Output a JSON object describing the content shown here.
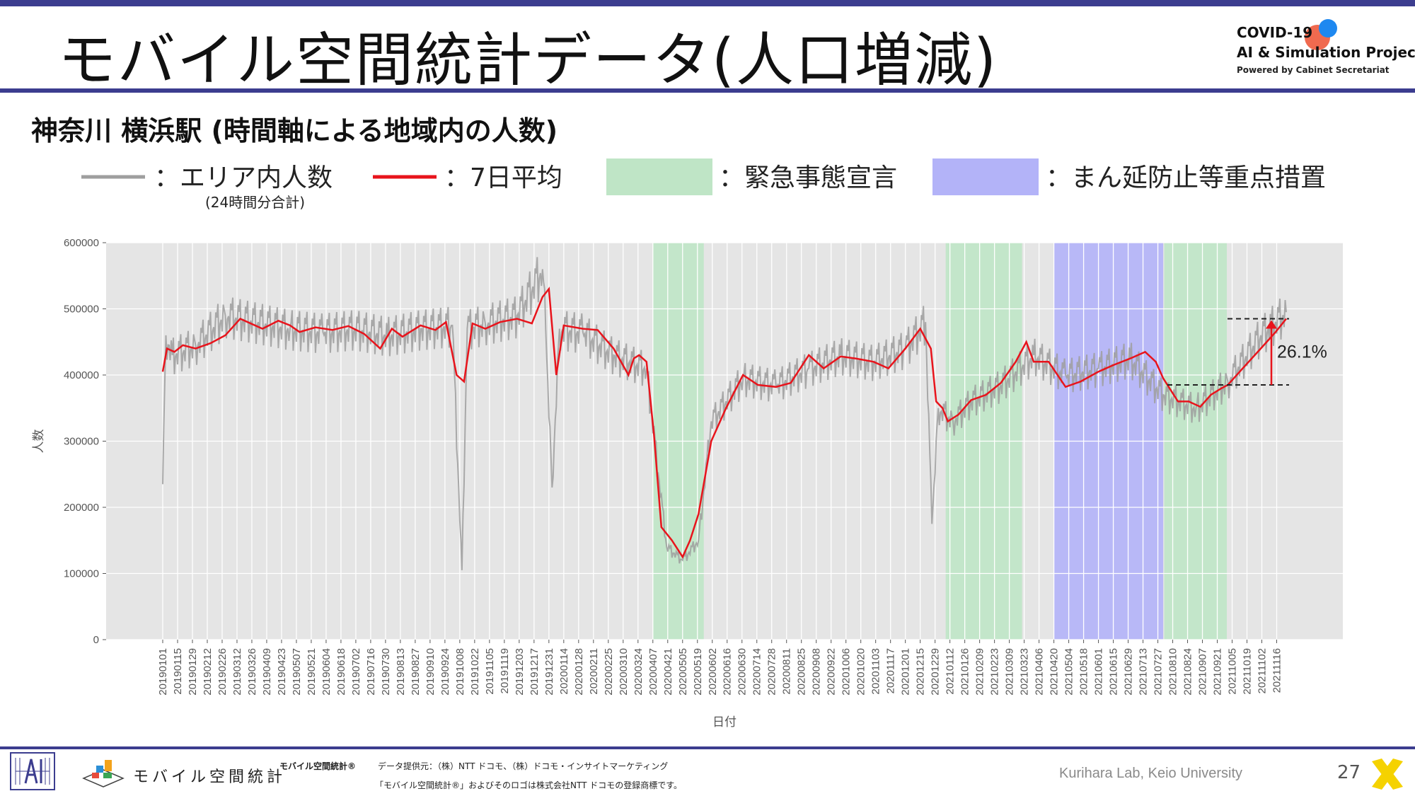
{
  "header": {
    "title": "モバイル空間統計データ(人口増減)",
    "logo_line1": "COVID-19",
    "logo_line2": "AI & Simulation Project",
    "logo_line3": "Powered by Cabinet Secretariat"
  },
  "subtitle": "神奈川 横浜駅 (時間軸による地域内の人数)",
  "legend": {
    "area_population": "：エリア内人数",
    "area_population_note": "(24時間分合計)",
    "moving_average": "：7日平均",
    "emergency": "：緊急事態宣言",
    "priority_measures": "：まん延防止等重点措置"
  },
  "colors": {
    "accent": "#3c3d8f",
    "daily_line": "#9e9e9e",
    "avg_line": "#e8141c",
    "emergency_band": "#bfe5c6",
    "priority_band": "#b3b3f8",
    "plot_bg": "#e5e5e5"
  },
  "chart_data": {
    "type": "line",
    "title": "",
    "xlabel": "日付",
    "ylabel": "人数",
    "ylim": [
      0,
      600000
    ],
    "yticks": [
      0,
      100000,
      200000,
      300000,
      400000,
      500000,
      600000
    ],
    "xtick_labels": [
      "20190101",
      "20190115",
      "20190129",
      "20190212",
      "20190226",
      "20190312",
      "20190326",
      "20190409",
      "20190423",
      "20190507",
      "20190521",
      "20190604",
      "20190618",
      "20190702",
      "20190716",
      "20190730",
      "20190813",
      "20190827",
      "20190910",
      "20190924",
      "20191008",
      "20191022",
      "20191105",
      "20191119",
      "20191203",
      "20191217",
      "20191231",
      "20200114",
      "20200128",
      "20200211",
      "20200225",
      "20200310",
      "20200324",
      "20200407",
      "20200421",
      "20200505",
      "20200519",
      "20200602",
      "20200616",
      "20200630",
      "20200714",
      "20200728",
      "20200811",
      "20200825",
      "20200908",
      "20200922",
      "20201006",
      "20201020",
      "20201103",
      "20201117",
      "20201201",
      "20201215",
      "20201229",
      "20210112",
      "20210126",
      "20210209",
      "20210223",
      "20210309",
      "20210323",
      "20210406",
      "20210420",
      "20210504",
      "20210518",
      "20210601",
      "20210615",
      "20210629",
      "20210713",
      "20210727",
      "20210810",
      "20210824",
      "20210907",
      "20210921",
      "20211005",
      "20211019",
      "20211102",
      "20211116"
    ],
    "x_range": [
      "20190101",
      "20211125"
    ],
    "grid": true,
    "shaded_periods": [
      {
        "kind": "emergency",
        "start": "20200407",
        "end": "20200525"
      },
      {
        "kind": "emergency",
        "start": "20210108",
        "end": "20210321"
      },
      {
        "kind": "priority",
        "start": "20210420",
        "end": "20210801"
      },
      {
        "kind": "emergency",
        "start": "20210802",
        "end": "20210930"
      }
    ],
    "series": [
      {
        "name": "7日平均",
        "x": [
          "20190101",
          "20190105",
          "20190112",
          "20190120",
          "20190201",
          "20190215",
          "20190301",
          "20190315",
          "20190322",
          "20190405",
          "20190420",
          "20190501",
          "20190510",
          "20190525",
          "20190610",
          "20190625",
          "20190710",
          "20190725",
          "20190805",
          "20190815",
          "20190901",
          "20190915",
          "20190925",
          "20191005",
          "20191012",
          "20191020",
          "20191101",
          "20191115",
          "20191201",
          "20191215",
          "20191225",
          "20191231",
          "20200107",
          "20200114",
          "20200201",
          "20200215",
          "20200301",
          "20200315",
          "20200320",
          "20200325",
          "20200401",
          "20200408",
          "20200415",
          "20200425",
          "20200505",
          "20200512",
          "20200520",
          "20200601",
          "20200615",
          "20200701",
          "20200715",
          "20200801",
          "20200815",
          "20200901",
          "20200915",
          "20201001",
          "20201015",
          "20201101",
          "20201115",
          "20201201",
          "20201215",
          "20201225",
          "20201230",
          "20210105",
          "20210110",
          "20210120",
          "20210201",
          "20210215",
          "20210301",
          "20210315",
          "20210325",
          "20210401",
          "20210415",
          "20210501",
          "20210515",
          "20210601",
          "20210615",
          "20210701",
          "20210715",
          "20210725",
          "20210801",
          "20210815",
          "20210825",
          "20210905",
          "20210915",
          "20210925",
          "20211001",
          "20211015",
          "20211101",
          "20211115",
          "20211125"
        ],
        "values": [
          405000,
          440000,
          435000,
          445000,
          440000,
          448000,
          460000,
          485000,
          480000,
          470000,
          482000,
          475000,
          465000,
          472000,
          468000,
          474000,
          462000,
          440000,
          470000,
          458000,
          475000,
          468000,
          480000,
          400000,
          390000,
          478000,
          470000,
          480000,
          485000,
          478000,
          518000,
          530000,
          400000,
          475000,
          470000,
          468000,
          440000,
          400000,
          425000,
          430000,
          420000,
          310000,
          170000,
          150000,
          125000,
          150000,
          190000,
          300000,
          350000,
          400000,
          385000,
          382000,
          388000,
          430000,
          410000,
          428000,
          425000,
          420000,
          410000,
          440000,
          470000,
          440000,
          360000,
          350000,
          330000,
          340000,
          362000,
          370000,
          388000,
          420000,
          450000,
          420000,
          420000,
          382000,
          390000,
          405000,
          415000,
          425000,
          435000,
          420000,
          395000,
          360000,
          360000,
          352000,
          370000,
          380000,
          385000,
          410000,
          440000,
          465000,
          485000
        ]
      },
      {
        "name": "エリア内人数",
        "x": [
          "20190101",
          "20190104",
          "20190110",
          "20190201",
          "20190301",
          "20190401",
          "20190501",
          "20190601",
          "20190701",
          "20190801",
          "20190901",
          "20191001",
          "20191010",
          "20191015",
          "20191101",
          "20191201",
          "20191225",
          "20191228",
          "20200103",
          "20200110",
          "20200201",
          "20200301",
          "20200401",
          "20200420",
          "20200505",
          "20200520",
          "20200601",
          "20200701",
          "20200801",
          "20200901",
          "20201001",
          "20201101",
          "20201201",
          "20201220",
          "20201226",
          "20210101",
          "20210115",
          "20210201",
          "20210301",
          "20210401",
          "20210501",
          "20210601",
          "20210701",
          "20210801",
          "20210901",
          "20211001",
          "20211101",
          "20211125"
        ],
        "values": [
          235000,
          460000,
          430000,
          445000,
          490000,
          480000,
          470000,
          465000,
          470000,
          460000,
          470000,
          475000,
          105000,
          470000,
          478000,
          490000,
          560000,
          470000,
          230000,
          470000,
          465000,
          430000,
          410000,
          140000,
          120000,
          150000,
          330000,
          395000,
          385000,
          410000,
          430000,
          420000,
          440000,
          480000,
          175000,
          350000,
          330000,
          360000,
          385000,
          430000,
          400000,
          410000,
          425000,
          370000,
          350000,
          390000,
          460000,
          495000
        ]
      }
    ],
    "annotation": {
      "label": "26.1%",
      "from_value": 385000,
      "to_value": 485000
    }
  },
  "footer": {
    "mobile_logo_text": "モバイル空間統計",
    "source_title": "モバイル空間統計®",
    "source_line1": "データ提供元：（株）NTT ドコモ、（株）ドコモ・インサイトマーケティング",
    "source_line2": "「モバイル空間統計®」およびそのロゴは株式会社NTT ドコモの登録商標です。",
    "credit": "Kurihara Lab, Keio University",
    "page_number": "27"
  }
}
